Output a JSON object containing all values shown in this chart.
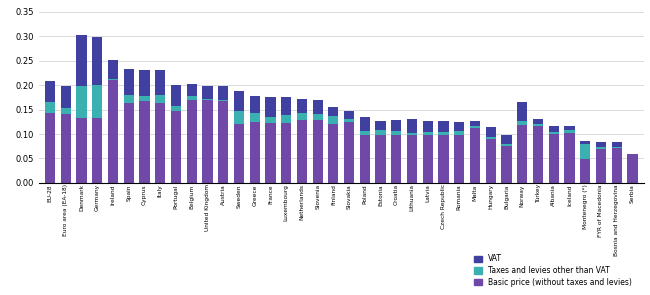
{
  "categories": [
    "EU-28",
    "Euro area (EA-18)",
    "Denmark",
    "Germany",
    "Ireland",
    "Spain",
    "Cyprus",
    "Italy",
    "Portugal",
    "Belgium",
    "United Kingdom",
    "Austria",
    "Sweden",
    "Greece",
    "France",
    "Luxembourg",
    "Netherlands",
    "Slovenia",
    "Finland",
    "Slovakia",
    "Poland",
    "Estonia",
    "Croatia",
    "Lithuania",
    "Latvia",
    "Czech Republic",
    "Romania",
    "Malta",
    "Hungary",
    "Bulgaria",
    "Norway",
    "Turkey",
    "Albania",
    "Iceland",
    "Montenegro (*)",
    "FYR of Macedonia",
    "Bosnia and Herzegovina",
    "Serbia"
  ],
  "basic": [
    0.143,
    0.141,
    0.133,
    0.133,
    0.21,
    0.163,
    0.168,
    0.163,
    0.148,
    0.17,
    0.17,
    0.168,
    0.12,
    0.124,
    0.123,
    0.123,
    0.128,
    0.128,
    0.12,
    0.124,
    0.097,
    0.097,
    0.097,
    0.097,
    0.097,
    0.097,
    0.097,
    0.113,
    0.09,
    0.075,
    0.119,
    0.116,
    0.101,
    0.103,
    0.048,
    0.069,
    0.071,
    0.06
  ],
  "taxes": [
    0.022,
    0.012,
    0.065,
    0.068,
    0.002,
    0.017,
    0.01,
    0.016,
    0.01,
    0.008,
    0.002,
    0.002,
    0.027,
    0.02,
    0.012,
    0.015,
    0.016,
    0.012,
    0.017,
    0.007,
    0.01,
    0.011,
    0.01,
    0.005,
    0.008,
    0.008,
    0.01,
    0.003,
    0.003,
    0.005,
    0.008,
    0.005,
    0.003,
    0.005,
    0.032,
    0.004,
    0.003,
    0.0
  ],
  "vat": [
    0.043,
    0.046,
    0.105,
    0.097,
    0.04,
    0.052,
    0.053,
    0.052,
    0.043,
    0.025,
    0.027,
    0.028,
    0.04,
    0.034,
    0.04,
    0.038,
    0.028,
    0.03,
    0.018,
    0.017,
    0.028,
    0.018,
    0.022,
    0.028,
    0.022,
    0.022,
    0.018,
    0.01,
    0.021,
    0.017,
    0.038,
    0.01,
    0.012,
    0.008,
    0.005,
    0.01,
    0.01,
    0.0
  ],
  "color_vat": "#4040a0",
  "color_taxes": "#3ab0b0",
  "color_basic": "#7048a8",
  "ylim": [
    0,
    0.35
  ],
  "yticks": [
    0.0,
    0.05,
    0.1,
    0.15,
    0.2,
    0.25,
    0.3,
    0.35
  ],
  "legend_labels": [
    "VAT",
    "Taxes and levies other than VAT",
    "Basic price (without taxes and levies)"
  ],
  "fig_width": 6.5,
  "fig_height": 2.95
}
